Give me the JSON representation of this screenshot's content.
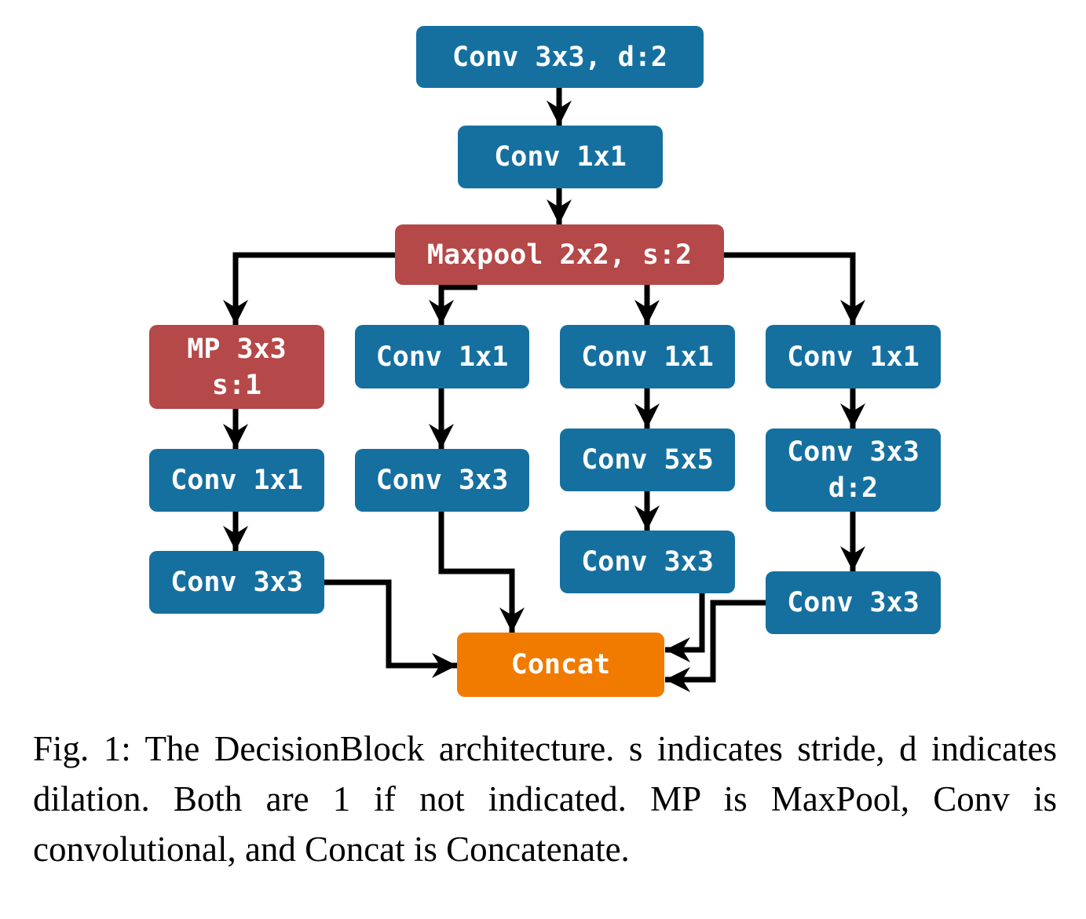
{
  "diagram": {
    "colors": {
      "conv": "#1570a0",
      "maxpool": "#b54848",
      "concat": "#f07b00",
      "arrow": "#000000"
    },
    "nodes": {
      "conv3x3_d2_top": "Conv 3x3, d:2",
      "conv1x1_top": "Conv 1x1",
      "maxpool": "Maxpool 2x2, s:2",
      "branch1": {
        "mp_line1": "MP 3x3",
        "mp_line2": "s:1",
        "conv1x1": "Conv 1x1",
        "conv3x3": "Conv 3x3"
      },
      "branch2": {
        "conv1x1": "Conv 1x1",
        "conv3x3": "Conv 3x3"
      },
      "branch3": {
        "conv1x1": "Conv 1x1",
        "conv5x5": "Conv 5x5",
        "conv3x3": "Conv 3x3"
      },
      "branch4": {
        "conv1x1": "Conv 1x1",
        "conv3x3_d2_line1": "Conv 3x3",
        "conv3x3_d2_line2": "d:2",
        "conv3x3": "Conv 3x3"
      },
      "concat": "Concat"
    }
  },
  "caption": "Fig. 1: The DecisionBlock architecture. s indicates stride, d indicates dilation. Both are 1 if not indicated. MP is MaxPool, Conv is convolutional, and Concat is Concatenate."
}
